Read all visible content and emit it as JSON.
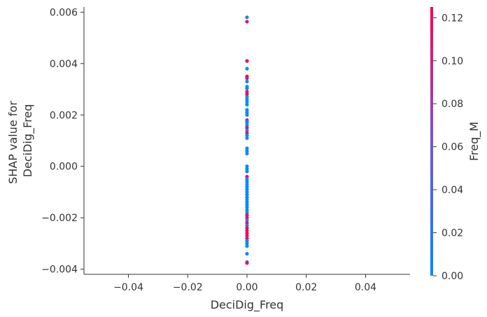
{
  "chart_data": {
    "type": "scatter",
    "xlabel": "DeciDig_Freq",
    "ylabel_lines": [
      "SHAP value for",
      "DeciDig_Freq"
    ],
    "xlim": [
      -0.055,
      0.055
    ],
    "ylim": [
      -0.0042,
      0.0062
    ],
    "x_ticks": [
      -0.04,
      -0.02,
      0.0,
      0.02,
      0.04
    ],
    "x_tick_labels": [
      "−0.04",
      "−0.02",
      "0.00",
      "0.02",
      "0.04"
    ],
    "y_ticks": [
      -0.004,
      -0.002,
      0.0,
      0.002,
      0.004,
      0.006
    ],
    "y_tick_labels": [
      "−0.004",
      "−0.002",
      "0.000",
      "0.002",
      "0.004",
      "0.006"
    ],
    "grid": false,
    "colorbar": {
      "label": "Freq_M",
      "range": [
        0.0,
        0.125
      ],
      "ticks": [
        0.0,
        0.02,
        0.04,
        0.06,
        0.08,
        0.1,
        0.12
      ],
      "tick_labels": [
        "0.00",
        "0.02",
        "0.04",
        "0.06",
        "0.08",
        "0.10",
        "0.12"
      ],
      "color_low": "#008bfb",
      "color_mid": "#7c52d6",
      "color_high": "#ff0052"
    },
    "points": [
      {
        "x": 0.0,
        "y": 0.0058,
        "c": 0.0
      },
      {
        "x": 0.0,
        "y": 0.00563,
        "c": 0.12
      },
      {
        "x": 0.0,
        "y": 0.0041,
        "c": 0.12
      },
      {
        "x": 0.0,
        "y": 0.0038,
        "c": 0.0
      },
      {
        "x": 0.0,
        "y": 0.0035,
        "c": 0.12
      },
      {
        "x": 0.0,
        "y": 0.00343,
        "c": 0.11
      },
      {
        "x": 0.0,
        "y": 0.0033,
        "c": 0.0
      },
      {
        "x": 0.0,
        "y": 0.0031,
        "c": 0.0
      },
      {
        "x": 0.0,
        "y": 0.00303,
        "c": 0.0
      },
      {
        "x": 0.0,
        "y": 0.0029,
        "c": 0.12
      },
      {
        "x": 0.0,
        "y": 0.0028,
        "c": 0.12
      },
      {
        "x": 0.0,
        "y": 0.0027,
        "c": 0.0
      },
      {
        "x": 0.0,
        "y": 0.0026,
        "c": 0.0
      },
      {
        "x": 0.0,
        "y": 0.0025,
        "c": 0.0
      },
      {
        "x": 0.0,
        "y": 0.0024,
        "c": 0.0
      },
      {
        "x": 0.0,
        "y": 0.0022,
        "c": 0.0
      },
      {
        "x": 0.0,
        "y": 0.0021,
        "c": 0.0
      },
      {
        "x": 0.0,
        "y": 0.002,
        "c": 0.0
      },
      {
        "x": 0.0,
        "y": 0.0018,
        "c": 0.12
      },
      {
        "x": 0.0,
        "y": 0.00175,
        "c": 0.0
      },
      {
        "x": 0.0,
        "y": 0.0017,
        "c": 0.0
      },
      {
        "x": 0.0,
        "y": 0.0016,
        "c": 0.0
      },
      {
        "x": 0.0,
        "y": 0.0015,
        "c": 0.12
      },
      {
        "x": 0.0,
        "y": 0.0014,
        "c": 0.0
      },
      {
        "x": 0.0,
        "y": 0.0013,
        "c": 0.12
      },
      {
        "x": 0.0,
        "y": 0.0012,
        "c": 0.0
      },
      {
        "x": 0.0,
        "y": 0.0011,
        "c": 0.0
      },
      {
        "x": 0.0,
        "y": 0.0007,
        "c": 0.0
      },
      {
        "x": 0.0,
        "y": 0.0006,
        "c": 0.0
      },
      {
        "x": 0.0,
        "y": 0.0005,
        "c": 0.0
      },
      {
        "x": 0.0,
        "y": 0.0,
        "c": 0.0
      },
      {
        "x": 0.0,
        "y": -0.0001,
        "c": 0.0
      },
      {
        "x": 0.0,
        "y": -0.0002,
        "c": 0.0
      },
      {
        "x": 0.0,
        "y": -0.0004,
        "c": 0.12
      },
      {
        "x": 0.0,
        "y": -0.0005,
        "c": 0.0
      },
      {
        "x": 0.0,
        "y": -0.0006,
        "c": 0.0
      },
      {
        "x": 0.0,
        "y": -0.0007,
        "c": 0.0
      },
      {
        "x": 0.0,
        "y": -0.0008,
        "c": 0.0
      },
      {
        "x": 0.0,
        "y": -0.0009,
        "c": 0.0
      },
      {
        "x": 0.0,
        "y": -0.001,
        "c": 0.0
      },
      {
        "x": 0.0,
        "y": -0.0011,
        "c": 0.0
      },
      {
        "x": 0.0,
        "y": -0.0012,
        "c": 0.0
      },
      {
        "x": 0.0,
        "y": -0.0013,
        "c": 0.0
      },
      {
        "x": 0.0,
        "y": -0.0014,
        "c": 0.0
      },
      {
        "x": 0.0,
        "y": -0.0015,
        "c": 0.0
      },
      {
        "x": 0.0,
        "y": -0.0016,
        "c": 0.0
      },
      {
        "x": 0.0,
        "y": -0.0017,
        "c": 0.0
      },
      {
        "x": 0.0,
        "y": -0.0018,
        "c": 0.0
      },
      {
        "x": 0.0,
        "y": -0.0019,
        "c": 0.12
      },
      {
        "x": 0.0,
        "y": -0.002,
        "c": 0.12
      },
      {
        "x": 0.0,
        "y": -0.0021,
        "c": 0.0
      },
      {
        "x": 0.0,
        "y": -0.0022,
        "c": 0.12
      },
      {
        "x": 0.0,
        "y": -0.0023,
        "c": 0.0
      },
      {
        "x": 0.0,
        "y": -0.0024,
        "c": 0.12
      },
      {
        "x": 0.0,
        "y": -0.0025,
        "c": 0.12
      },
      {
        "x": 0.0,
        "y": -0.0026,
        "c": 0.12
      },
      {
        "x": 0.0,
        "y": -0.0027,
        "c": 0.12
      },
      {
        "x": 0.0,
        "y": -0.0028,
        "c": 0.12
      },
      {
        "x": 0.0,
        "y": -0.0029,
        "c": 0.0
      },
      {
        "x": 0.0,
        "y": -0.003,
        "c": 0.0
      },
      {
        "x": 0.0,
        "y": -0.0031,
        "c": 0.0
      },
      {
        "x": 0.0,
        "y": -0.0034,
        "c": 0.0
      },
      {
        "x": 0.0,
        "y": -0.00372,
        "c": 0.0
      },
      {
        "x": 0.0,
        "y": -0.00376,
        "c": 0.12
      }
    ]
  }
}
